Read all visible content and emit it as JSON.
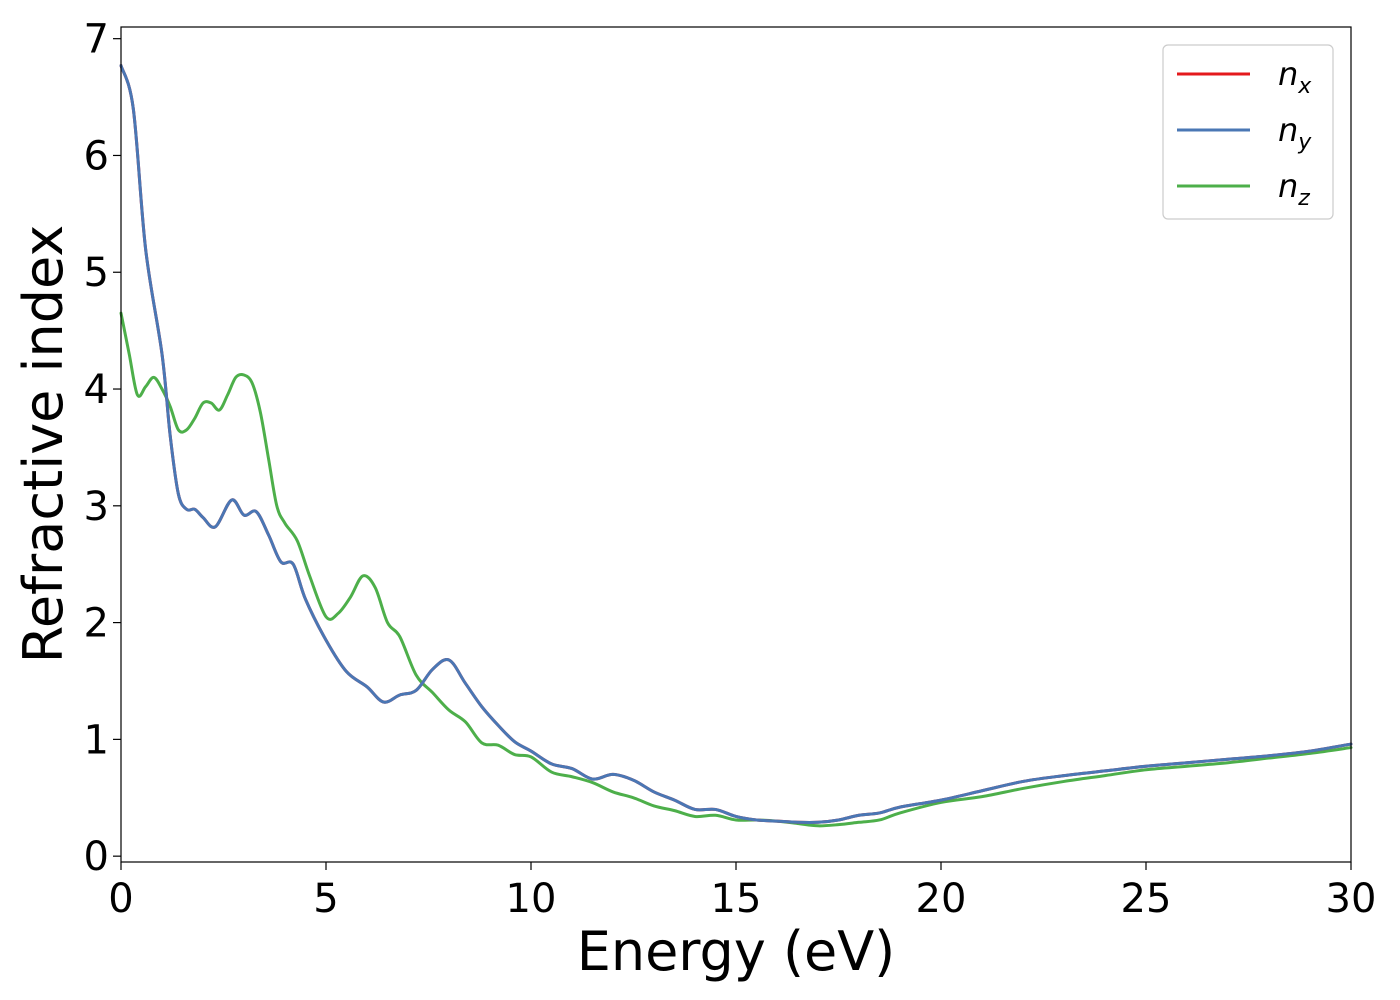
{
  "chart_data": {
    "type": "line",
    "title": "",
    "xlabel": "Energy (eV)",
    "ylabel": "Refractive index",
    "xlim": [
      0,
      30
    ],
    "ylim": [
      -0.05,
      7.1
    ],
    "xticks": [
      0,
      5,
      10,
      15,
      20,
      25,
      30
    ],
    "yticks": [
      0,
      1,
      2,
      3,
      4,
      5,
      6,
      7
    ],
    "grid": false,
    "legend_position": "top-right",
    "series": [
      {
        "name": "n",
        "sub": "x",
        "color": "#e41a1c",
        "x": [
          0,
          0.3,
          0.6,
          1.0,
          1.2,
          1.4,
          1.6,
          1.8,
          2.0,
          2.3,
          2.7,
          3.0,
          3.3,
          3.6,
          3.9,
          4.2,
          4.5,
          5.0,
          5.5,
          6.0,
          6.4,
          6.8,
          7.2,
          7.6,
          8.0,
          8.4,
          8.8,
          9.2,
          9.6,
          10.0,
          10.5,
          11.0,
          11.5,
          12.0,
          12.5,
          13.0,
          13.5,
          14.0,
          14.5,
          15.0,
          15.5,
          16.0,
          16.5,
          17.0,
          17.5,
          18.0,
          18.5,
          19.0,
          20.0,
          21.0,
          22.0,
          23.0,
          24.0,
          25.0,
          26.0,
          27.0,
          28.0,
          29.0,
          30.0
        ],
        "y": [
          6.77,
          6.4,
          5.2,
          4.3,
          3.6,
          3.1,
          2.97,
          2.97,
          2.9,
          2.82,
          3.05,
          2.92,
          2.95,
          2.75,
          2.52,
          2.5,
          2.2,
          1.85,
          1.58,
          1.45,
          1.32,
          1.38,
          1.42,
          1.6,
          1.68,
          1.48,
          1.28,
          1.12,
          0.98,
          0.9,
          0.79,
          0.75,
          0.66,
          0.7,
          0.65,
          0.55,
          0.48,
          0.4,
          0.4,
          0.34,
          0.31,
          0.3,
          0.29,
          0.29,
          0.31,
          0.35,
          0.37,
          0.42,
          0.48,
          0.56,
          0.64,
          0.69,
          0.73,
          0.77,
          0.8,
          0.83,
          0.86,
          0.9,
          0.96
        ]
      },
      {
        "name": "n",
        "sub": "y",
        "color": "#4a77b4",
        "x": [
          0,
          0.3,
          0.6,
          1.0,
          1.2,
          1.4,
          1.6,
          1.8,
          2.0,
          2.3,
          2.7,
          3.0,
          3.3,
          3.6,
          3.9,
          4.2,
          4.5,
          5.0,
          5.5,
          6.0,
          6.4,
          6.8,
          7.2,
          7.6,
          8.0,
          8.4,
          8.8,
          9.2,
          9.6,
          10.0,
          10.5,
          11.0,
          11.5,
          12.0,
          12.5,
          13.0,
          13.5,
          14.0,
          14.5,
          15.0,
          15.5,
          16.0,
          16.5,
          17.0,
          17.5,
          18.0,
          18.5,
          19.0,
          20.0,
          21.0,
          22.0,
          23.0,
          24.0,
          25.0,
          26.0,
          27.0,
          28.0,
          29.0,
          30.0
        ],
        "y": [
          6.77,
          6.4,
          5.2,
          4.3,
          3.6,
          3.1,
          2.97,
          2.97,
          2.9,
          2.82,
          3.05,
          2.92,
          2.95,
          2.75,
          2.52,
          2.5,
          2.2,
          1.85,
          1.58,
          1.45,
          1.32,
          1.38,
          1.42,
          1.6,
          1.68,
          1.48,
          1.28,
          1.12,
          0.98,
          0.9,
          0.79,
          0.75,
          0.66,
          0.7,
          0.65,
          0.55,
          0.48,
          0.4,
          0.4,
          0.34,
          0.31,
          0.3,
          0.29,
          0.29,
          0.31,
          0.35,
          0.37,
          0.42,
          0.48,
          0.56,
          0.64,
          0.69,
          0.73,
          0.77,
          0.8,
          0.83,
          0.86,
          0.9,
          0.96
        ]
      },
      {
        "name": "n",
        "sub": "z",
        "color": "#4daf4a",
        "x": [
          0,
          0.2,
          0.4,
          0.6,
          0.8,
          1.0,
          1.2,
          1.4,
          1.6,
          1.8,
          2.0,
          2.2,
          2.4,
          2.6,
          2.8,
          3.0,
          3.2,
          3.4,
          3.6,
          3.8,
          4.0,
          4.3,
          4.6,
          5.0,
          5.3,
          5.6,
          5.9,
          6.2,
          6.5,
          6.8,
          7.2,
          7.6,
          8.0,
          8.4,
          8.8,
          9.2,
          9.6,
          10.0,
          10.5,
          11.0,
          11.5,
          12.0,
          12.5,
          13.0,
          13.5,
          14.0,
          14.5,
          15.0,
          15.5,
          16.0,
          16.5,
          17.0,
          17.5,
          18.0,
          18.5,
          19.0,
          20.0,
          21.0,
          22.0,
          23.0,
          24.0,
          25.0,
          26.0,
          27.0,
          28.0,
          29.0,
          30.0
        ],
        "y": [
          4.65,
          4.3,
          3.95,
          4.02,
          4.1,
          4.0,
          3.85,
          3.65,
          3.65,
          3.75,
          3.88,
          3.88,
          3.82,
          3.95,
          4.1,
          4.12,
          4.05,
          3.8,
          3.4,
          3.0,
          2.85,
          2.7,
          2.4,
          2.05,
          2.08,
          2.22,
          2.4,
          2.3,
          2.0,
          1.88,
          1.55,
          1.4,
          1.25,
          1.15,
          0.97,
          0.95,
          0.87,
          0.85,
          0.72,
          0.68,
          0.63,
          0.55,
          0.5,
          0.43,
          0.39,
          0.34,
          0.35,
          0.31,
          0.31,
          0.3,
          0.28,
          0.26,
          0.27,
          0.29,
          0.31,
          0.37,
          0.46,
          0.51,
          0.58,
          0.64,
          0.69,
          0.74,
          0.77,
          0.8,
          0.84,
          0.88,
          0.93
        ]
      }
    ]
  }
}
